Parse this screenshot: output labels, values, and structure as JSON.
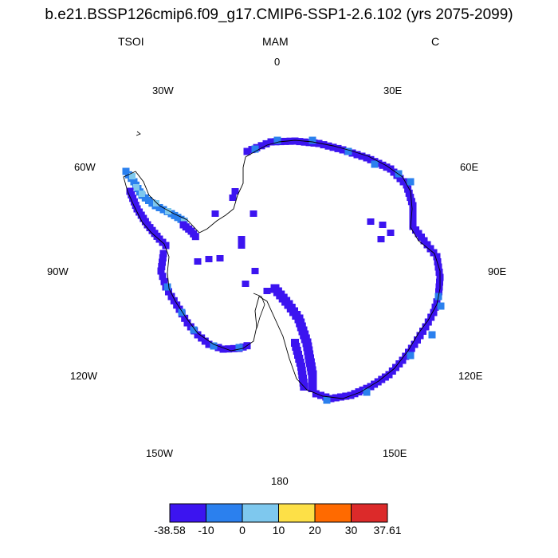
{
  "title": "b.e21.BSSP126cmip6.f09_g17.CMIP6-SSP1-2.6.102 (yrs 2075-2099)",
  "left_string": "TSOI",
  "center_string": "MAM",
  "right_string": "C",
  "longitude_labels": {
    "lon0": "0",
    "lon30e": "30E",
    "lon60e": "60E",
    "lon90e": "90E",
    "lon120e": "120E",
    "lon150e": "150E",
    "lon180": "180",
    "lon150w": "150W",
    "lon120w": "120W",
    "lon90w": "90W",
    "lon60w": "60W",
    "lon30w": "30W"
  },
  "colorbar": {
    "colors": [
      "#3c14f0",
      "#2b80ee",
      "#7ec8ee",
      "#fde047",
      "#ff6a00",
      "#dc2a2a"
    ],
    "labels": [
      "-38.58",
      "-10",
      "0",
      "10",
      "20",
      "30",
      "37.61"
    ]
  },
  "map": {
    "projection": "south polar stereographic",
    "dominant_color": "#3c14f0",
    "secondary_color": "#2b80ee"
  }
}
